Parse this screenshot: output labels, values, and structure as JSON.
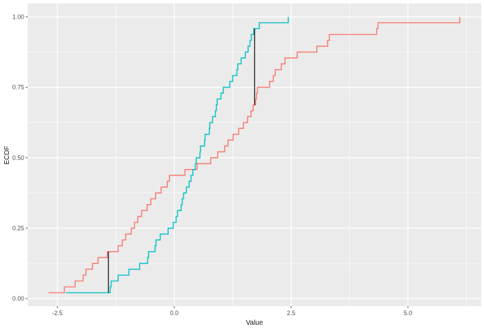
{
  "chart_data": {
    "type": "line",
    "subtype": "ecdf-step",
    "title": "",
    "xlabel": "Value",
    "ylabel": "ECDF",
    "xlim": [
      -3.13,
      6.55
    ],
    "ylim": [
      -0.047,
      1.047
    ],
    "grid": "on",
    "legend": "none",
    "panel_bg": "#EBEBEB",
    "grid_color": "#FFFFFF",
    "x_ticks": [
      {
        "v": -2.5,
        "label": "-2.5"
      },
      {
        "v": 0.0,
        "label": "0.0"
      },
      {
        "v": 2.5,
        "label": "2.5"
      },
      {
        "v": 5.0,
        "label": "5.0"
      }
    ],
    "y_ticks": [
      {
        "v": 0.0,
        "label": "0.00"
      },
      {
        "v": 0.25,
        "label": "0.25"
      },
      {
        "v": 0.5,
        "label": "0.50"
      },
      {
        "v": 0.75,
        "label": "0.75"
      },
      {
        "v": 1.0,
        "label": "1.00"
      }
    ],
    "x_minor": [
      -1.25,
      1.25,
      3.75,
      6.25
    ],
    "y_minor": [
      0.125,
      0.375,
      0.625,
      0.875
    ],
    "series": [
      {
        "name": "sample-1-red",
        "color": "#F8766D",
        "n": 48,
        "values": [
          -2.69,
          -2.35,
          -2.12,
          -1.95,
          -1.89,
          -1.75,
          -1.63,
          -1.43,
          -1.2,
          -1.11,
          -1.04,
          -0.92,
          -0.85,
          -0.78,
          -0.7,
          -0.58,
          -0.5,
          -0.4,
          -0.28,
          -0.15,
          -0.1,
          0.23,
          0.49,
          0.78,
          0.93,
          1.08,
          1.15,
          1.26,
          1.38,
          1.48,
          1.57,
          1.64,
          1.69,
          1.74,
          1.76,
          1.78,
          2.04,
          2.12,
          2.16,
          2.29,
          2.37,
          2.63,
          3.05,
          3.28,
          3.32,
          4.33,
          4.36,
          6.11
        ]
      },
      {
        "name": "sample-2-cyan",
        "color": "#00BFC4",
        "n": 48,
        "values": [
          -2.32,
          -1.37,
          -1.35,
          -1.2,
          -0.97,
          -0.74,
          -0.57,
          -0.55,
          -0.41,
          -0.39,
          -0.3,
          -0.13,
          -0.02,
          0.04,
          0.07,
          0.15,
          0.17,
          0.2,
          0.26,
          0.32,
          0.36,
          0.4,
          0.45,
          0.47,
          0.55,
          0.56,
          0.65,
          0.66,
          0.75,
          0.76,
          0.82,
          0.88,
          0.9,
          0.92,
          1.0,
          1.05,
          1.19,
          1.25,
          1.34,
          1.36,
          1.43,
          1.52,
          1.58,
          1.62,
          1.65,
          1.7,
          1.82,
          2.44
        ]
      }
    ],
    "ks_segments": [
      {
        "x": -1.41,
        "ecdf_from": 0.0208,
        "ecdf_to": 0.1667,
        "color": "#000000"
      },
      {
        "x": 1.72,
        "ecdf_from": 0.6875,
        "ecdf_to": 0.9583,
        "color": "#000000"
      }
    ]
  },
  "axes": {
    "x_title": "Value",
    "y_title": "ECDF"
  }
}
